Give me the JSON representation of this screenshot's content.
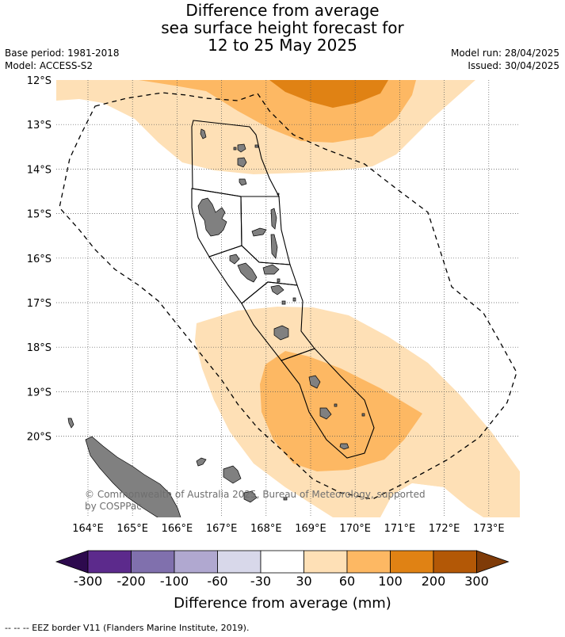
{
  "title": {
    "line1": "Difference from average",
    "line2": "sea surface height forecast for",
    "line3": "12 to 25 May 2025"
  },
  "meta_left": {
    "base_period": "Base period: 1981-2018",
    "model": "Model: ACCESS-S2"
  },
  "meta_right": {
    "model_run": "Model run: 28/04/2025",
    "issued": "Issued: 30/04/2025"
  },
  "map": {
    "lat_labels": [
      "12°S",
      "13°S",
      "14°S",
      "15°S",
      "16°S",
      "17°S",
      "18°S",
      "19°S",
      "20°S"
    ],
    "lon_labels": [
      "164°E",
      "165°E",
      "166°E",
      "167°E",
      "168°E",
      "169°E",
      "170°E",
      "171°E",
      "172°E",
      "173°E"
    ],
    "copyright": "© Commonwealth of Australia 2025, Bureau of Meteorology, supported by COSPPac",
    "land_color": "#808080"
  },
  "colorbar": {
    "bins": [
      {
        "color": "#2d0a4e"
      },
      {
        "color": "#5c2a8c"
      },
      {
        "color": "#8070ad"
      },
      {
        "color": "#b0a8d0"
      },
      {
        "color": "#d8d8ea"
      },
      {
        "color": "#ffffff"
      },
      {
        "color": "#fee0b6"
      },
      {
        "color": "#fdb863"
      },
      {
        "color": "#e08214"
      },
      {
        "color": "#b35806"
      },
      {
        "color": "#7f3b08"
      }
    ],
    "tick_labels": [
      "-300",
      "-200",
      "-100",
      "-60",
      "-30",
      "30",
      "60",
      "100",
      "200",
      "300"
    ],
    "title": "Difference from average (mm)"
  },
  "footnote": "--  --  -- EEZ border V11 (Flanders Marine Institute, 2019)."
}
